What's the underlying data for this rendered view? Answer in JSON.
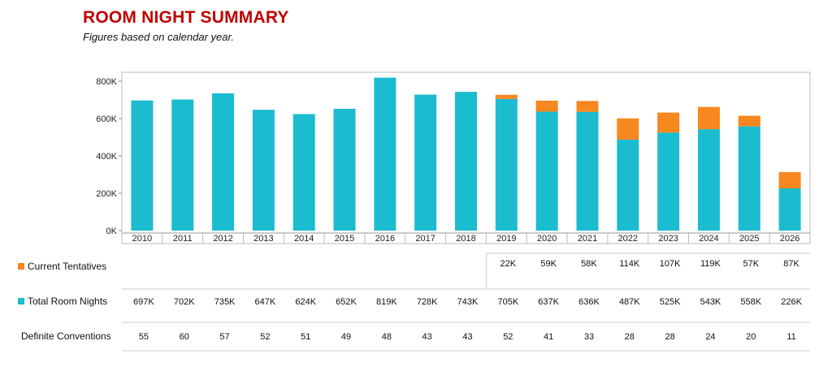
{
  "header": {
    "title": "ROOM NIGHT SUMMARY",
    "subtitle": "Figures based on calendar year."
  },
  "chart_data": {
    "type": "bar",
    "stacked": true,
    "categories": [
      "2010",
      "2011",
      "2012",
      "2013",
      "2014",
      "2015",
      "2016",
      "2017",
      "2018",
      "2019",
      "2020",
      "2021",
      "2022",
      "2023",
      "2024",
      "2025",
      "2026"
    ],
    "series": [
      {
        "name": "Total Room Nights",
        "color": "#1bbccf",
        "values": [
          697,
          702,
          735,
          647,
          624,
          652,
          819,
          728,
          743,
          705,
          637,
          636,
          487,
          525,
          543,
          558,
          226
        ],
        "labels": [
          "697K",
          "702K",
          "735K",
          "647K",
          "624K",
          "652K",
          "819K",
          "728K",
          "743K",
          "705K",
          "637K",
          "636K",
          "487K",
          "525K",
          "543K",
          "558K",
          "226K"
        ]
      },
      {
        "name": "Current Tentatives",
        "color": "#f7871f",
        "values": [
          0,
          0,
          0,
          0,
          0,
          0,
          0,
          0,
          0,
          22,
          59,
          58,
          114,
          107,
          119,
          57,
          87
        ],
        "labels": [
          "",
          "",
          "",
          "",
          "",
          "",
          "",
          "",
          "",
          "22K",
          "59K",
          "58K",
          "114K",
          "107K",
          "119K",
          "57K",
          "87K"
        ]
      }
    ],
    "definite_conventions": {
      "name": "Definite Conventions",
      "values": [
        "55",
        "60",
        "57",
        "52",
        "51",
        "49",
        "48",
        "43",
        "43",
        "52",
        "41",
        "33",
        "28",
        "28",
        "24",
        "20",
        "11"
      ]
    },
    "yticks": [
      "0K",
      "200K",
      "400K",
      "600K",
      "800K"
    ],
    "ytick_values": [
      0,
      200,
      400,
      600,
      800
    ],
    "ylim": [
      0,
      820
    ],
    "xlabel": "",
    "ylabel": ""
  }
}
